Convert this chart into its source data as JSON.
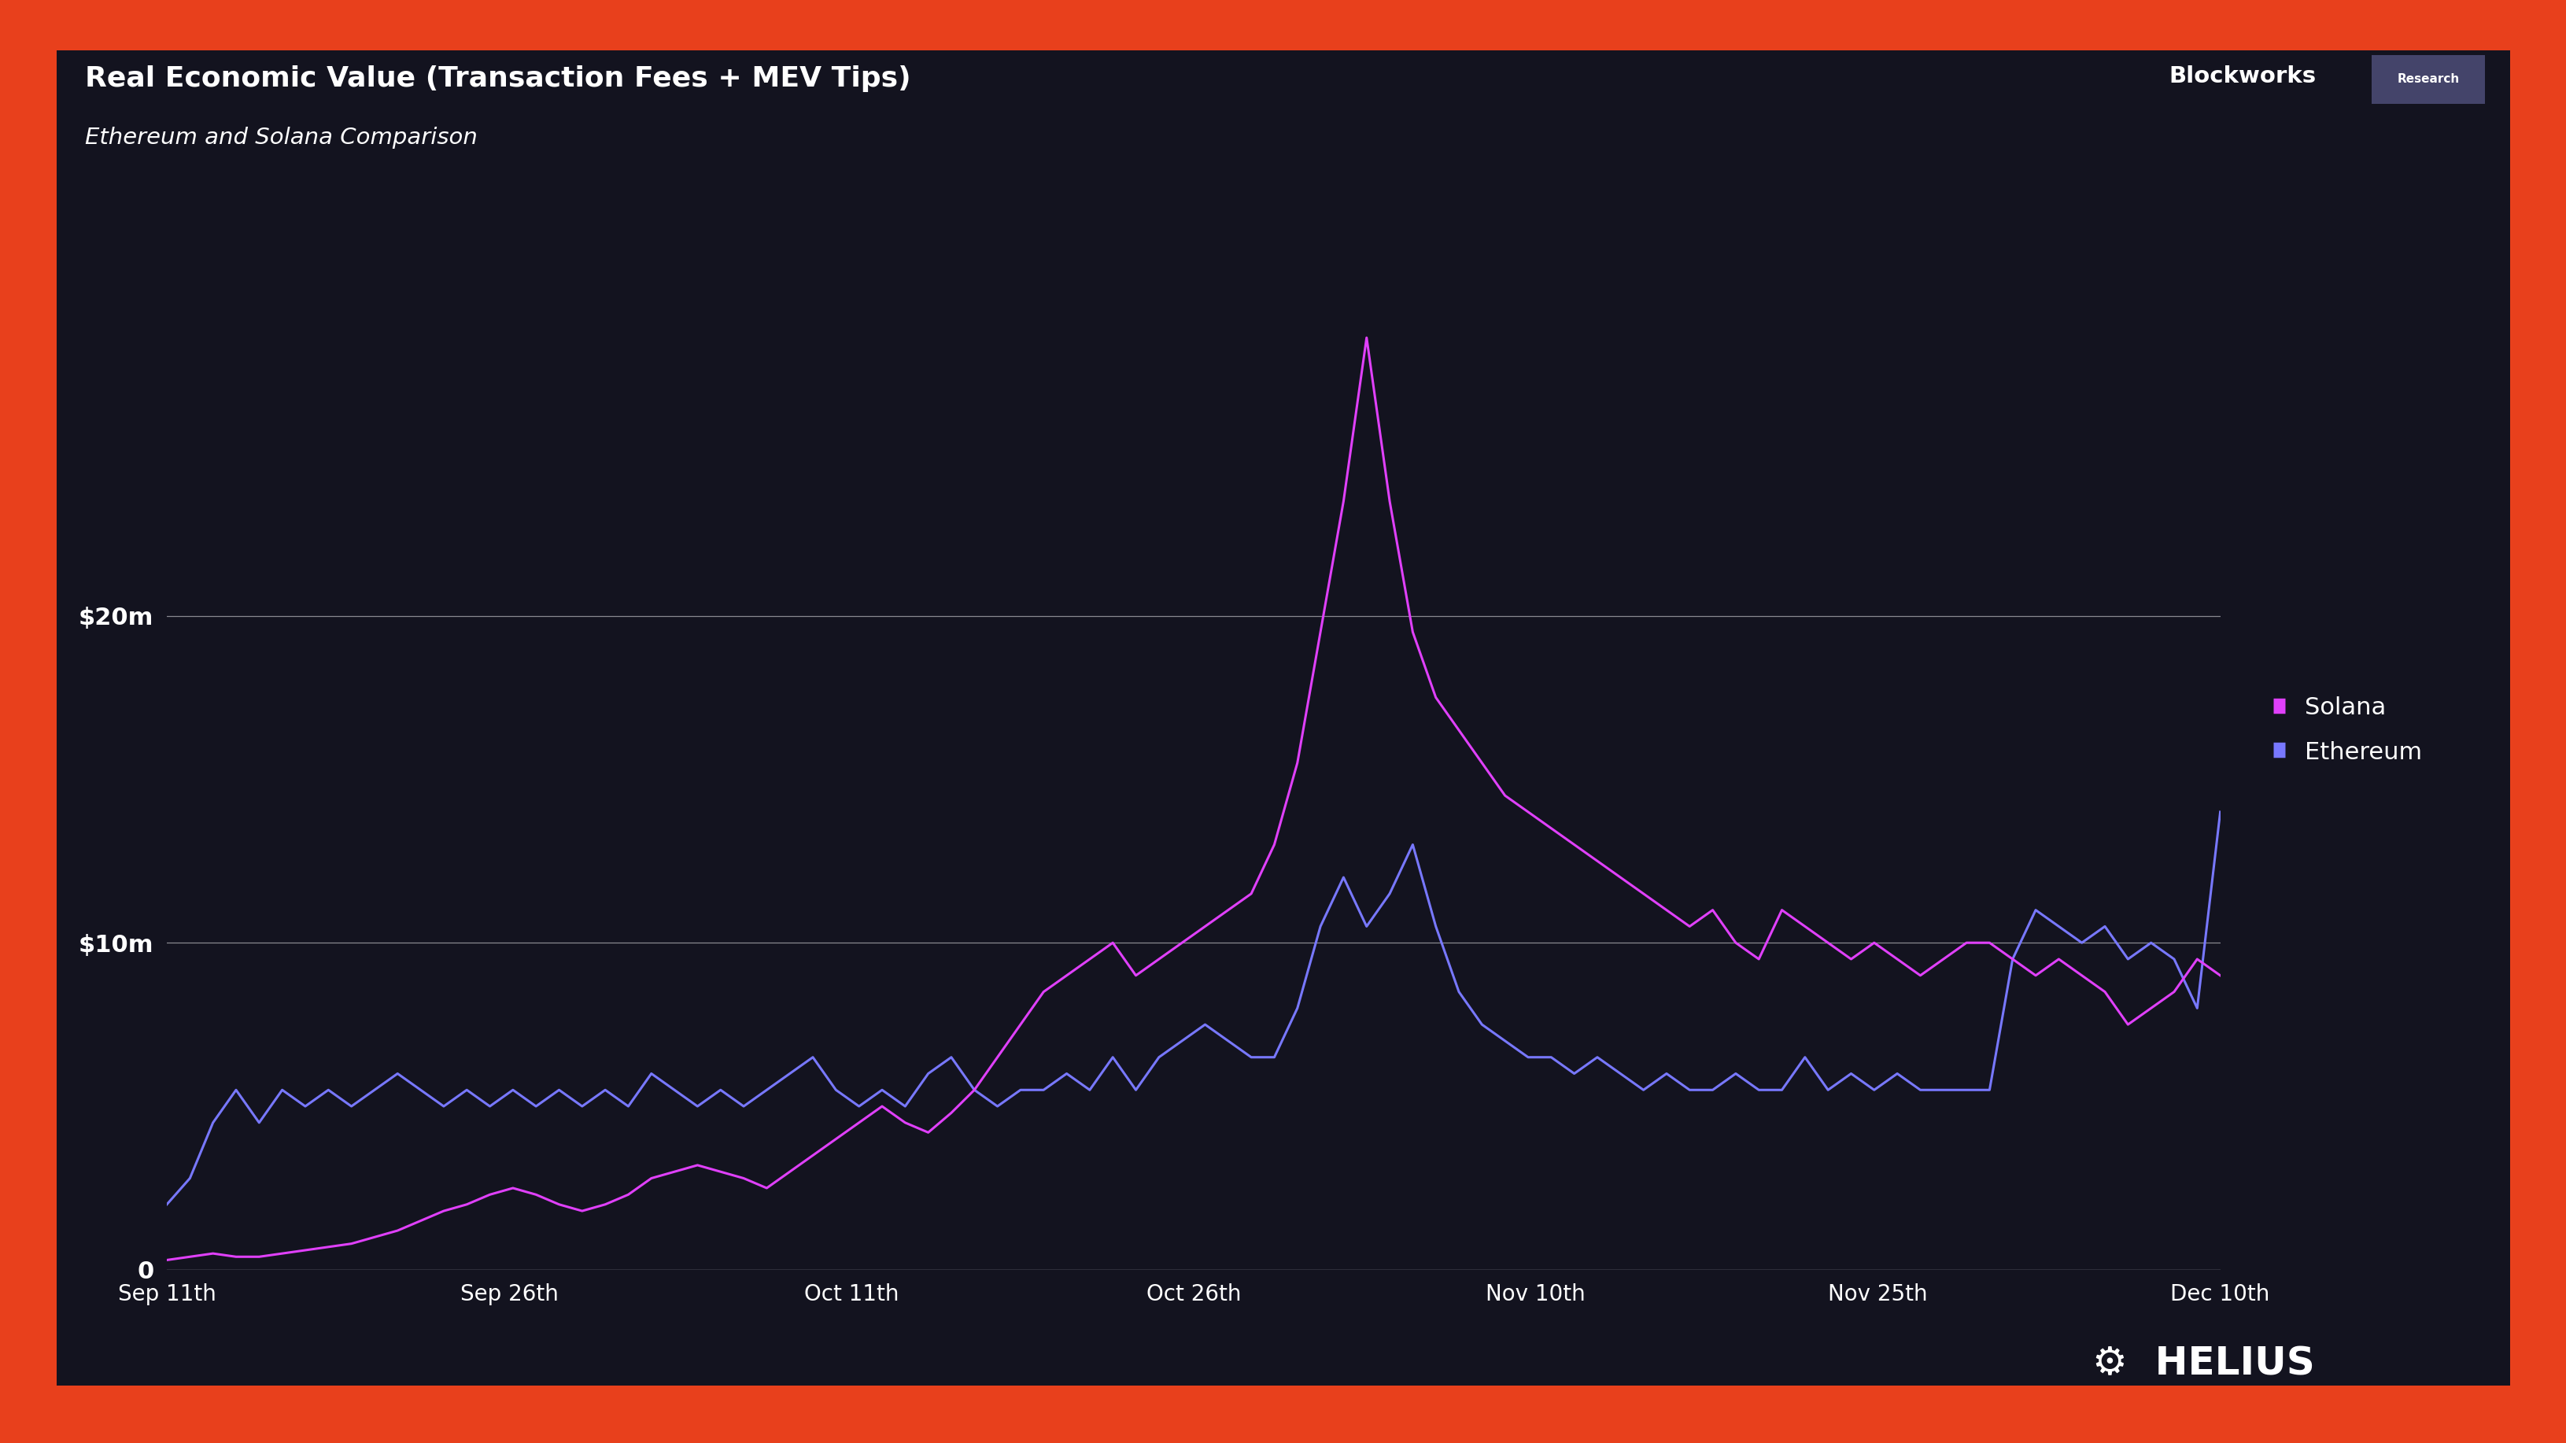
{
  "title": "Real Economic Value (Transaction Fees + MEV Tips)",
  "subtitle": "Ethereum and Solana Comparison",
  "outer_bg": "#e8401c",
  "chart_bg": "#13131f",
  "grid_color": "#ffffff",
  "text_color": "#ffffff",
  "solana_color": "#e040fb",
  "ethereum_color": "#7878ff",
  "yticks": [
    0,
    10000000,
    20000000
  ],
  "ytick_labels": [
    "0",
    "$10m",
    "$20m"
  ],
  "xtick_labels": [
    "Sep 11th",
    "Sep 26th",
    "Oct 11th",
    "Oct 26th",
    "Nov 10th",
    "Nov 25th",
    "Dec 10th"
  ],
  "solana_values_m": [
    0.3,
    0.4,
    0.5,
    0.4,
    0.4,
    0.5,
    0.6,
    0.7,
    0.8,
    1.0,
    1.2,
    1.5,
    1.8,
    2.0,
    2.3,
    2.5,
    2.3,
    2.0,
    1.8,
    2.0,
    2.3,
    2.8,
    3.0,
    3.2,
    3.0,
    2.8,
    2.5,
    3.0,
    3.5,
    4.0,
    4.5,
    5.0,
    4.5,
    4.2,
    4.8,
    5.5,
    6.5,
    7.5,
    8.5,
    9.0,
    9.5,
    10.0,
    9.0,
    9.5,
    10.0,
    10.5,
    11.0,
    11.5,
    13.0,
    15.5,
    19.5,
    23.5,
    28.5,
    23.5,
    19.5,
    17.5,
    16.5,
    15.5,
    14.5,
    14.0,
    13.5,
    13.0,
    12.5,
    12.0,
    11.5,
    11.0,
    10.5,
    11.0,
    10.0,
    9.5,
    11.0,
    10.5,
    10.0,
    9.5,
    10.0,
    9.5,
    9.0,
    9.5,
    10.0,
    10.0,
    9.5,
    9.0,
    9.5,
    9.0,
    8.5,
    7.5,
    8.0,
    8.5,
    9.5,
    9.0
  ],
  "ethereum_values_m": [
    2.0,
    2.8,
    4.5,
    5.5,
    4.5,
    5.5,
    5.0,
    5.5,
    5.0,
    5.5,
    6.0,
    5.5,
    5.0,
    5.5,
    5.0,
    5.5,
    5.0,
    5.5,
    5.0,
    5.5,
    5.0,
    6.0,
    5.5,
    5.0,
    5.5,
    5.0,
    5.5,
    6.0,
    6.5,
    5.5,
    5.0,
    5.5,
    5.0,
    6.0,
    6.5,
    5.5,
    5.0,
    5.5,
    5.5,
    6.0,
    5.5,
    6.5,
    5.5,
    6.5,
    7.0,
    7.5,
    7.0,
    6.5,
    6.5,
    8.0,
    10.5,
    12.0,
    10.5,
    11.5,
    13.0,
    10.5,
    8.5,
    7.5,
    7.0,
    6.5,
    6.5,
    6.0,
    6.5,
    6.0,
    5.5,
    6.0,
    5.5,
    5.5,
    6.0,
    5.5,
    5.5,
    6.5,
    5.5,
    6.0,
    5.5,
    6.0,
    5.5,
    5.5,
    5.5,
    5.5,
    9.5,
    11.0,
    10.5,
    10.0,
    10.5,
    9.5,
    10.0,
    9.5,
    8.0,
    14.0
  ],
  "ylim_max": 30000000,
  "legend_labels": [
    "Solana",
    "Ethereum"
  ],
  "blockworks_text": "Blockworks",
  "research_text": "Research",
  "helius_text": "HELIUS"
}
